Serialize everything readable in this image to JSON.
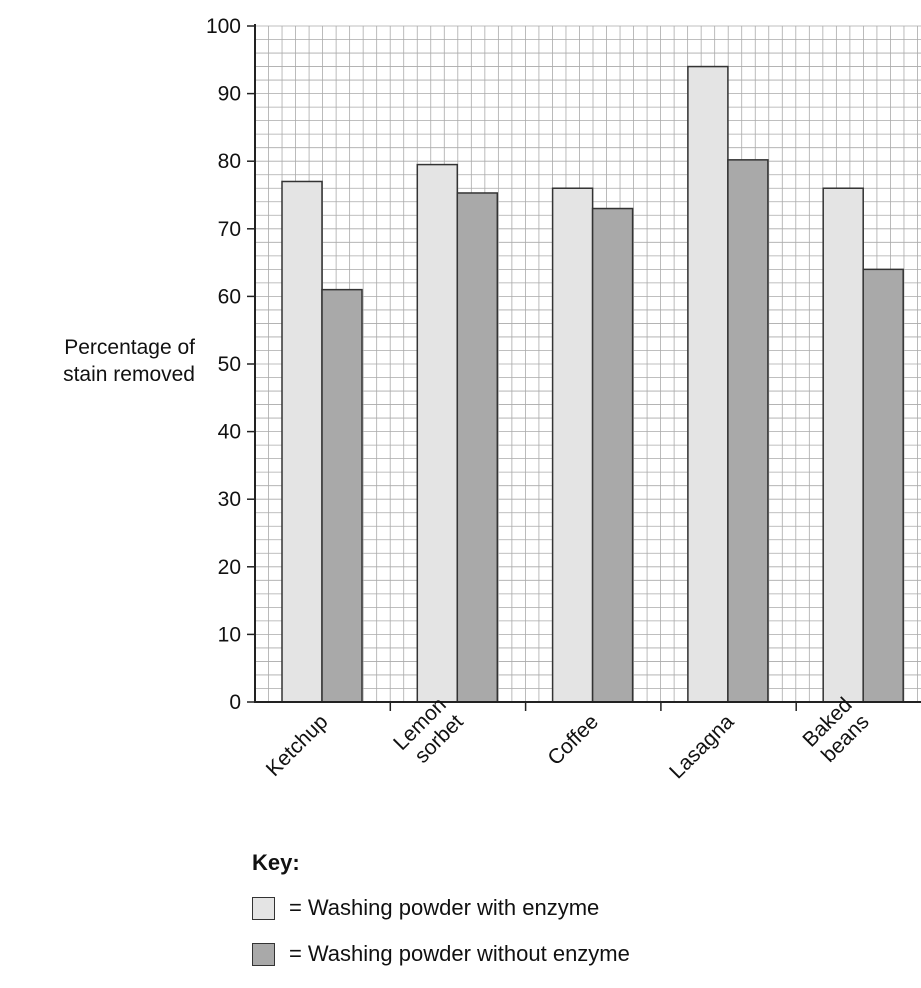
{
  "chart_data": {
    "type": "bar",
    "categories": [
      "Ketchup",
      "Lemon sorbet",
      "Coffee",
      "Lasagna",
      "Baked beans"
    ],
    "category_lines": [
      [
        "Ketchup"
      ],
      [
        "Lemon",
        "sorbet"
      ],
      [
        "Coffee"
      ],
      [
        "Lasagna"
      ],
      [
        "Baked",
        "beans"
      ]
    ],
    "series": [
      {
        "name": "Washing powder with enzyme",
        "values": [
          77,
          79.5,
          76,
          94,
          76
        ],
        "color": "#e4e4e4"
      },
      {
        "name": "Washing powder without enzyme",
        "values": [
          61,
          75.3,
          73,
          80.2,
          64
        ],
        "color": "#a9a9a9"
      }
    ],
    "ylabel": "Percentage of stain removed",
    "ylabel_lines": [
      "Percentage of",
      "stain removed"
    ],
    "ylim": [
      0,
      100
    ],
    "yticks": [
      "0",
      "10",
      "20",
      "30",
      "40",
      "50",
      "60",
      "70",
      "80",
      "90",
      "100"
    ],
    "grid": true,
    "grid_color": "#aaaaaa",
    "legend_position": "bottom"
  },
  "key": {
    "title": "Key:",
    "items": [
      {
        "eq": "=",
        "label": "Washing powder with enzyme",
        "color": "#e4e4e4"
      },
      {
        "eq": "=",
        "label": "Washing powder without enzyme",
        "color": "#a9a9a9"
      }
    ]
  }
}
